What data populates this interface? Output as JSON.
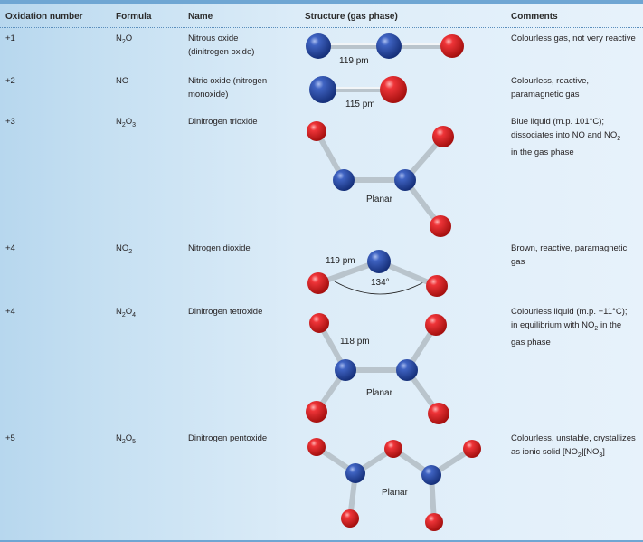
{
  "header": {
    "oxidation": "Oxidation number",
    "formula": "Formula",
    "name": "Name",
    "structure": "Structure (gas phase)",
    "comments": "Comments"
  },
  "rows": [
    {
      "oxidation": "+1",
      "formula": {
        "base": "N",
        "sub1": "2",
        "tail": "O"
      },
      "name_lines": [
        "Nitrous oxide",
        "(dinitrogen oxide)"
      ],
      "structure_labels": [
        "119 pm"
      ],
      "comment_lines": [
        "Colourless gas, not very reactive"
      ]
    },
    {
      "oxidation": "+2",
      "formula": {
        "base": "NO",
        "sub1": "",
        "tail": ""
      },
      "name_lines": [
        "Nitric oxide (nitrogen",
        "monoxide)"
      ],
      "structure_labels": [
        "115 pm"
      ],
      "comment_lines": [
        "Colourless, reactive,",
        "paramagnetic gas"
      ]
    },
    {
      "oxidation": "+3",
      "formula": {
        "base": "N",
        "sub1": "2",
        "tail": "O",
        "sub2": "3"
      },
      "name_lines": [
        "Dinitrogen trioxide"
      ],
      "structure_labels": [
        "Planar"
      ],
      "comment_lines": [
        "Blue liquid (m.p. 101°C);",
        "dissociates into NO and NO",
        "in the gas phase"
      ],
      "comment_sub": "2"
    },
    {
      "oxidation": "+4",
      "formula": {
        "base": "NO",
        "sub1": "2",
        "tail": ""
      },
      "name_lines": [
        "Nitrogen dioxide"
      ],
      "structure_labels": [
        "119 pm",
        "134°"
      ],
      "comment_lines": [
        "Brown, reactive, paramagnetic",
        "gas"
      ]
    },
    {
      "oxidation": "+4",
      "formula": {
        "base": "N",
        "sub1": "2",
        "tail": "O",
        "sub2": "4"
      },
      "name_lines": [
        "Dinitrogen tetroxide"
      ],
      "structure_labels": [
        "118 pm",
        "Planar"
      ],
      "comment_lines": [
        "Colourless liquid (m.p. −11°C);",
        "in equilibrium with NO",
        "gas phase"
      ],
      "comment_sub": "2",
      "comment_tail": " in the"
    },
    {
      "oxidation": "+5",
      "formula": {
        "base": "N",
        "sub1": "2",
        "tail": "O",
        "sub2": "5"
      },
      "name_lines": [
        "Dinitrogen pentoxide"
      ],
      "structure_labels": [
        "Planar"
      ],
      "comment_lines": [
        "Colourless, unstable, crystallizes",
        "as ionic solid [NO",
        "][NO",
        "]"
      ],
      "comment_subs": [
        "2",
        "3"
      ]
    }
  ],
  "colors": {
    "nitrogen": "#2a4ea8",
    "oxygen": "#e0262c",
    "bond": "#b9c4cc",
    "rule": "#5b8fbd"
  }
}
